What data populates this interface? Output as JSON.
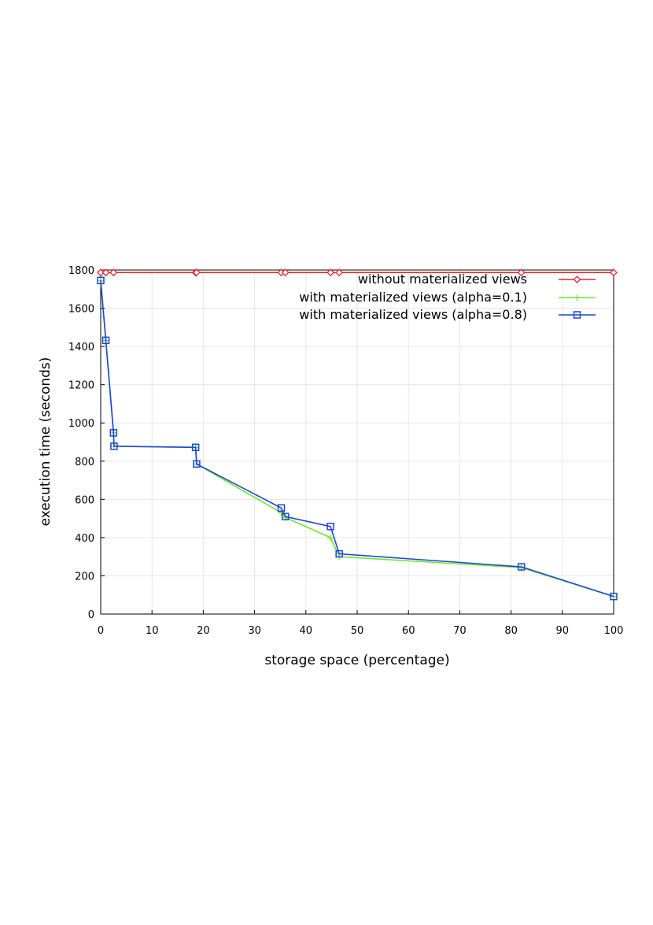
{
  "chart_data": {
    "type": "line",
    "xlabel": "storage space (percentage)",
    "ylabel": "execution time (seconds)",
    "xlim": [
      0,
      100
    ],
    "ylim": [
      0,
      1800
    ],
    "xticks": [
      0,
      10,
      20,
      30,
      40,
      50,
      60,
      70,
      80,
      90,
      100
    ],
    "yticks": [
      0,
      200,
      400,
      600,
      800,
      1000,
      1200,
      1400,
      1600,
      1800
    ],
    "grid": true,
    "legend_position": "top-right",
    "series": [
      {
        "name": "without materialized views",
        "color": "#e8262d",
        "marker": "diamond",
        "x": [
          0,
          1,
          2.5,
          18.5,
          18.7,
          35.2,
          36,
          44.8,
          46.5,
          82,
          100
        ],
        "y": [
          1787,
          1787,
          1787,
          1787,
          1787,
          1787,
          1787,
          1787,
          1787,
          1787,
          1787
        ]
      },
      {
        "name": "with materialized views (alpha=0.1)",
        "color": "#6ee82a",
        "marker": "plus",
        "x": [
          0,
          1,
          2.5,
          2.6,
          18.5,
          18.7,
          35.2,
          36,
          44.8,
          46.5,
          82,
          100
        ],
        "y": [
          1745,
          1432,
          948,
          878,
          872,
          785,
          530,
          505,
          400,
          300,
          243,
          92
        ]
      },
      {
        "name": "with materialized views (alpha=0.8)",
        "color": "#1f45d6",
        "marker": "square",
        "x": [
          0,
          1,
          2.5,
          2.6,
          18.5,
          18.7,
          35.2,
          36,
          44.8,
          46.5,
          82,
          100
        ],
        "y": [
          1745,
          1432,
          948,
          878,
          872,
          785,
          555,
          510,
          458,
          315,
          247,
          92
        ]
      }
    ]
  }
}
